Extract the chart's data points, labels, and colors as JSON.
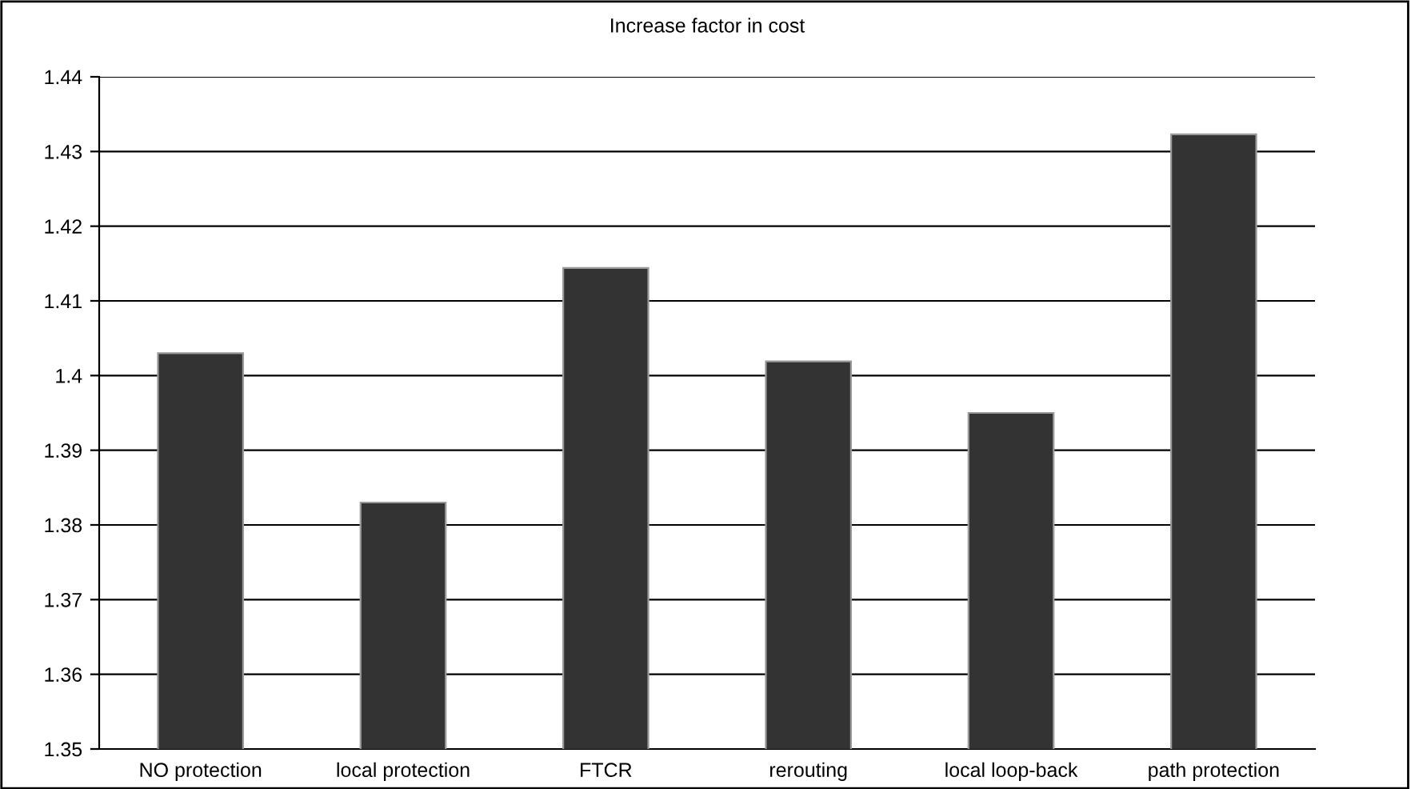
{
  "chart_data": {
    "type": "bar",
    "title": "Increase factor in cost",
    "categories": [
      "NO protection",
      "local protection",
      "FTCR",
      "rerouting",
      "local loop-back",
      "path protection"
    ],
    "values": [
      1.403,
      1.383,
      1.4144,
      1.4019,
      1.395,
      1.4323
    ],
    "color": "#333333",
    "ylim": [
      1.35,
      1.44
    ],
    "yticks": [
      1.35,
      1.36,
      1.37,
      1.38,
      1.39,
      1.4,
      1.41,
      1.42,
      1.43,
      1.44
    ],
    "grid": "y",
    "legend": false
  }
}
